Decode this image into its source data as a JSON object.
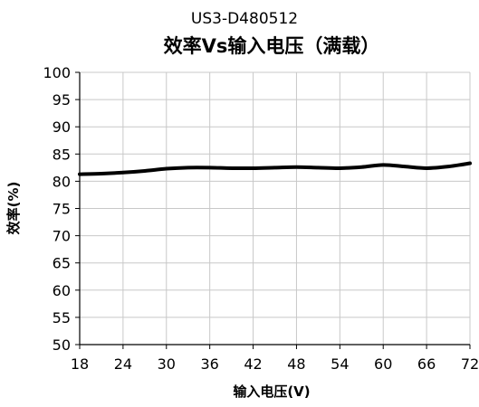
{
  "chart_data": {
    "type": "line",
    "title": "效率Vs输入电压（满载）",
    "subtitle": "US3-D480512",
    "xlabel": "输入电压(V)",
    "ylabel": "效率(%)",
    "xlim": [
      18,
      72
    ],
    "ylim": [
      50,
      100
    ],
    "x_ticks": [
      "18",
      "24",
      "30",
      "36",
      "42",
      "48",
      "54",
      "60",
      "66",
      "72"
    ],
    "y_ticks": [
      "50",
      "55",
      "60",
      "65",
      "70",
      "75",
      "80",
      "85",
      "90",
      "95",
      "100"
    ],
    "grid": true,
    "legend": "none",
    "line_color": "#000000",
    "grid_color": "#c8c8c8",
    "series": [
      {
        "x": [
          18,
          21,
          24,
          27,
          30,
          33,
          36,
          39,
          42,
          45,
          48,
          51,
          54,
          57,
          60,
          63,
          66,
          69,
          72
        ],
        "values": [
          81.3,
          81.4,
          81.6,
          81.9,
          82.3,
          82.5,
          82.5,
          82.4,
          82.4,
          82.5,
          82.6,
          82.5,
          82.4,
          82.6,
          83.0,
          82.7,
          82.4,
          82.7,
          83.3
        ]
      }
    ]
  }
}
